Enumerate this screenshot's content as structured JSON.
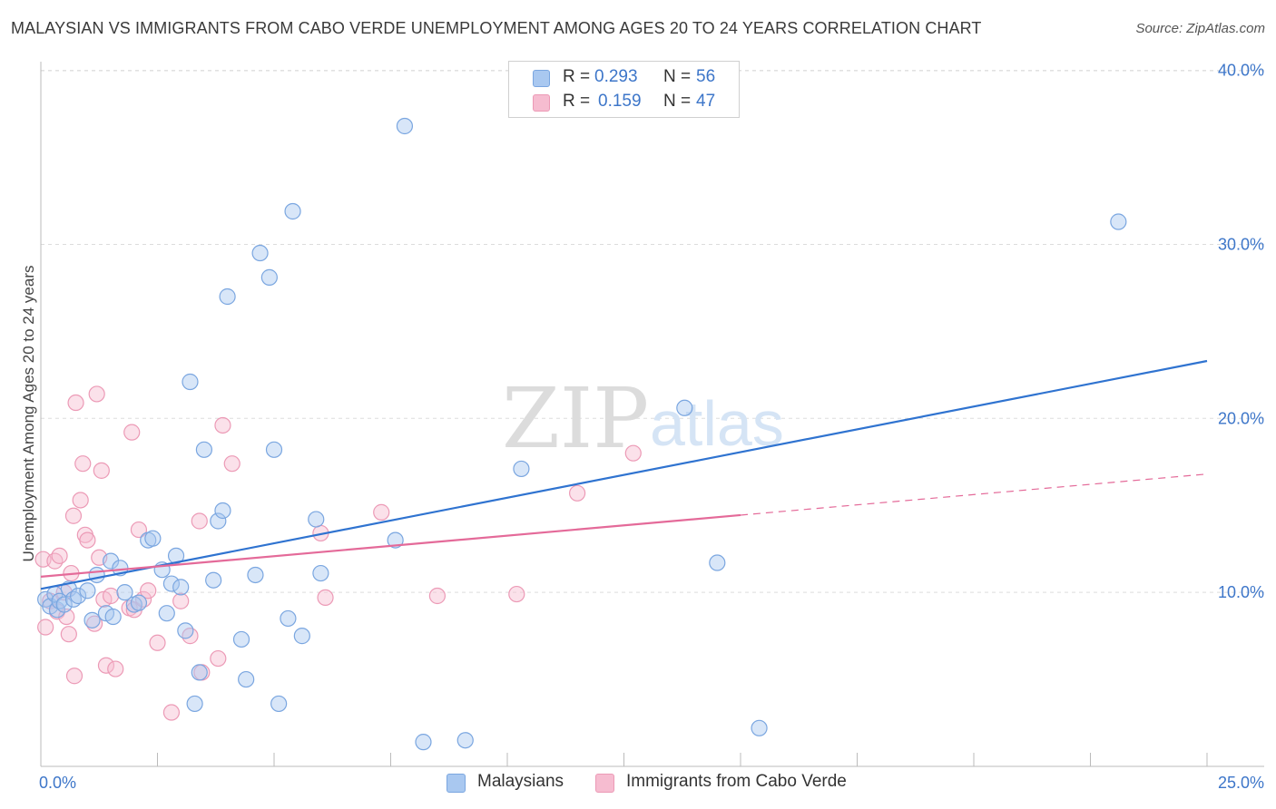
{
  "title": "MALAYSIAN VS IMMIGRANTS FROM CABO VERDE UNEMPLOYMENT AMONG AGES 20 TO 24 YEARS CORRELATION CHART",
  "source": "Source: ZipAtlas.com",
  "watermark": {
    "zip": "ZIP",
    "atlas": "atlas"
  },
  "colors": {
    "blue_fill": "#a9c8f0",
    "blue_stroke": "#7aa6e0",
    "blue_line": "#2f73d0",
    "pink_fill": "#f6bcd0",
    "pink_stroke": "#ec9ab6",
    "pink_line": "#e46a99",
    "axis_label": "#3d76c9",
    "grid": "#dddddd"
  },
  "legend": {
    "rows": [
      {
        "r_label": "R =",
        "r_value": "0.293",
        "n_label": "N =",
        "n_value": "56"
      },
      {
        "r_label": "R =",
        "r_value": "0.159",
        "n_label": "N =",
        "n_value": "47"
      }
    ]
  },
  "chart_data": {
    "type": "scatter",
    "title": "MALAYSIAN VS IMMIGRANTS FROM CABO VERDE UNEMPLOYMENT AMONG AGES 20 TO 24 YEARS CORRELATION CHART",
    "xlabel": "",
    "ylabel": "Unemployment Among Ages 20 to 24 years",
    "xlim": [
      0,
      25
    ],
    "ylim": [
      0,
      40.5
    ],
    "x_tick_labels": [
      "0.0%",
      "25.0%"
    ],
    "y_ticks": [
      10,
      20,
      30,
      40
    ],
    "y_tick_labels": [
      "10.0%",
      "20.0%",
      "30.0%",
      "40.0%"
    ],
    "grid": true,
    "series": [
      {
        "name": "Malaysians",
        "color": "#a9c8f0",
        "r": 0.293,
        "n": 56,
        "trend": {
          "x": [
            0,
            25
          ],
          "y": [
            10.2,
            23.3
          ],
          "dashed_from": null
        },
        "points": [
          [
            0.1,
            9.6
          ],
          [
            0.2,
            9.2
          ],
          [
            0.3,
            9.9
          ],
          [
            0.35,
            9.0
          ],
          [
            0.4,
            9.5
          ],
          [
            0.5,
            9.3
          ],
          [
            0.6,
            10.2
          ],
          [
            0.7,
            9.6
          ],
          [
            0.8,
            9.8
          ],
          [
            1.0,
            10.1
          ],
          [
            1.1,
            8.4
          ],
          [
            1.2,
            11.0
          ],
          [
            1.4,
            8.8
          ],
          [
            1.5,
            11.8
          ],
          [
            1.55,
            8.6
          ],
          [
            1.7,
            11.4
          ],
          [
            1.8,
            10.0
          ],
          [
            2.0,
            9.3
          ],
          [
            2.1,
            9.4
          ],
          [
            2.3,
            13.0
          ],
          [
            2.4,
            13.1
          ],
          [
            2.6,
            11.3
          ],
          [
            2.7,
            8.8
          ],
          [
            2.8,
            10.5
          ],
          [
            2.9,
            12.1
          ],
          [
            3.0,
            10.3
          ],
          [
            3.1,
            7.8
          ],
          [
            3.2,
            22.1
          ],
          [
            3.3,
            3.6
          ],
          [
            3.4,
            5.4
          ],
          [
            3.5,
            18.2
          ],
          [
            3.7,
            10.7
          ],
          [
            3.8,
            14.1
          ],
          [
            3.9,
            14.7
          ],
          [
            4.0,
            27.0
          ],
          [
            4.3,
            7.3
          ],
          [
            4.4,
            5.0
          ],
          [
            4.6,
            11.0
          ],
          [
            4.7,
            29.5
          ],
          [
            4.9,
            28.1
          ],
          [
            5.0,
            18.2
          ],
          [
            5.1,
            3.6
          ],
          [
            5.3,
            8.5
          ],
          [
            5.4,
            31.9
          ],
          [
            5.6,
            7.5
          ],
          [
            5.9,
            14.2
          ],
          [
            6.0,
            11.1
          ],
          [
            7.6,
            13.0
          ],
          [
            7.8,
            36.8
          ],
          [
            8.2,
            1.4
          ],
          [
            9.1,
            1.5
          ],
          [
            10.3,
            17.1
          ],
          [
            13.8,
            20.6
          ],
          [
            14.5,
            11.7
          ],
          [
            15.4,
            2.2
          ],
          [
            23.1,
            31.3
          ]
        ]
      },
      {
        "name": "Immigrants from Cabo Verde",
        "color": "#f6bcd0",
        "r": 0.159,
        "n": 47,
        "trend": {
          "x": [
            0,
            25
          ],
          "y": [
            10.9,
            16.8
          ],
          "dashed_from": 15.0
        },
        "points": [
          [
            0.05,
            11.9
          ],
          [
            0.1,
            8.0
          ],
          [
            0.2,
            9.5
          ],
          [
            0.3,
            11.8
          ],
          [
            0.35,
            8.9
          ],
          [
            0.4,
            12.1
          ],
          [
            0.5,
            10.0
          ],
          [
            0.55,
            8.6
          ],
          [
            0.6,
            7.6
          ],
          [
            0.65,
            11.1
          ],
          [
            0.7,
            14.4
          ],
          [
            0.72,
            5.2
          ],
          [
            0.75,
            20.9
          ],
          [
            0.85,
            15.3
          ],
          [
            0.9,
            17.4
          ],
          [
            0.95,
            13.3
          ],
          [
            1.0,
            13.0
          ],
          [
            1.15,
            8.2
          ],
          [
            1.2,
            21.4
          ],
          [
            1.25,
            12.0
          ],
          [
            1.3,
            17.0
          ],
          [
            1.35,
            9.6
          ],
          [
            1.4,
            5.8
          ],
          [
            1.5,
            9.8
          ],
          [
            1.6,
            5.6
          ],
          [
            1.9,
            9.1
          ],
          [
            1.95,
            19.2
          ],
          [
            2.0,
            9.0
          ],
          [
            2.1,
            13.6
          ],
          [
            2.2,
            9.6
          ],
          [
            2.3,
            10.1
          ],
          [
            2.5,
            7.1
          ],
          [
            2.8,
            3.1
          ],
          [
            3.0,
            9.5
          ],
          [
            3.2,
            7.5
          ],
          [
            3.4,
            14.1
          ],
          [
            3.45,
            5.4
          ],
          [
            3.8,
            6.2
          ],
          [
            3.9,
            19.6
          ],
          [
            4.1,
            17.4
          ],
          [
            6.0,
            13.4
          ],
          [
            6.1,
            9.7
          ],
          [
            7.3,
            14.6
          ],
          [
            8.5,
            9.8
          ],
          [
            10.2,
            9.9
          ],
          [
            11.5,
            15.7
          ],
          [
            12.7,
            18.0
          ]
        ]
      }
    ]
  }
}
